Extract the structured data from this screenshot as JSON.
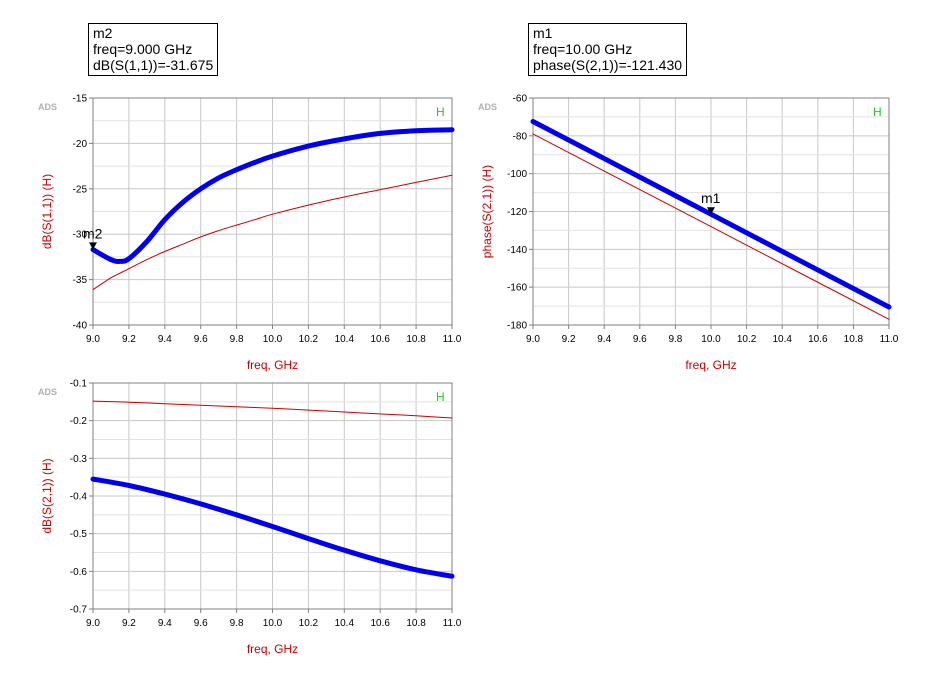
{
  "markers": [
    {
      "name": "m2",
      "line1": "m2",
      "line2": "freq=9.000 GHz",
      "line3": "dB(S(1,1))=-31.675"
    },
    {
      "name": "m1",
      "line1": "m1",
      "line2": "freq=10.00 GHz",
      "line3": "phase(S(2,1))=-121.430"
    }
  ],
  "chart_data": [
    {
      "type": "line",
      "watermark": "ADS",
      "corner_label": "H",
      "xlabel": "freq, GHz",
      "ylabel": "dB(S(1,1))  (H)",
      "xlim": [
        9.0,
        11.0
      ],
      "ylim": [
        -40,
        -15
      ],
      "xticks": [
        "9.0",
        "9.2",
        "9.4",
        "9.6",
        "9.8",
        "10.0",
        "10.2",
        "10.4",
        "10.6",
        "10.8",
        "11.0"
      ],
      "yticks": [
        "-15",
        "-20",
        "-25",
        "-30",
        "-35",
        "-40"
      ],
      "grid": true,
      "x": [
        9.0,
        9.1,
        9.15,
        9.2,
        9.3,
        9.4,
        9.5,
        9.6,
        9.7,
        9.8,
        9.9,
        10.0,
        10.2,
        10.4,
        10.6,
        10.8,
        11.0
      ],
      "series": [
        {
          "color": "#0000ee",
          "width": "thick",
          "values": [
            -31.7,
            -32.8,
            -33.0,
            -32.7,
            -30.8,
            -28.4,
            -26.5,
            -25.0,
            -23.8,
            -22.9,
            -22.1,
            -21.4,
            -20.3,
            -19.5,
            -18.9,
            -18.6,
            -18.5
          ]
        },
        {
          "color": "#cc0000",
          "width": "thin",
          "values": [
            -36.1,
            -34.8,
            -34.3,
            -33.8,
            -32.8,
            -31.9,
            -31.1,
            -30.3,
            -29.6,
            -29.0,
            -28.4,
            -27.8,
            -26.8,
            -25.9,
            -25.1,
            -24.3,
            -23.5
          ]
        }
      ],
      "marker": {
        "label": "m2",
        "x": 9.0,
        "y": -31.675
      }
    },
    {
      "type": "line",
      "watermark": "ADS",
      "corner_label": "H",
      "xlabel": "freq, GHz",
      "ylabel": "phase(S(2,1))  (H)",
      "xlim": [
        9.0,
        11.0
      ],
      "ylim": [
        -180,
        -60
      ],
      "xticks": [
        "9.0",
        "9.2",
        "9.4",
        "9.6",
        "9.8",
        "10.0",
        "10.2",
        "10.4",
        "10.6",
        "10.8",
        "11.0"
      ],
      "yticks": [
        "-60",
        "-80",
        "-100",
        "-120",
        "-140",
        "-160",
        "-180"
      ],
      "grid": true,
      "x": [
        9.0,
        9.5,
        10.0,
        10.5,
        11.0
      ],
      "series": [
        {
          "color": "#0000ee",
          "width": "thick",
          "values": [
            -72.4,
            -96.9,
            -121.43,
            -146.0,
            -170.5
          ]
        },
        {
          "color": "#cc0000",
          "width": "thin",
          "values": [
            -79.0,
            -103.5,
            -128.0,
            -152.5,
            -177.0
          ]
        }
      ],
      "marker": {
        "label": "m1",
        "x": 10.0,
        "y": -121.43
      }
    },
    {
      "type": "line",
      "watermark": "ADS",
      "corner_label": "H",
      "xlabel": "freq, GHz",
      "ylabel": "dB(S(2,1))  (H)",
      "xlim": [
        9.0,
        11.0
      ],
      "ylim": [
        -0.7,
        -0.1
      ],
      "xticks": [
        "9.0",
        "9.2",
        "9.4",
        "9.6",
        "9.8",
        "10.0",
        "10.2",
        "10.4",
        "10.6",
        "10.8",
        "11.0"
      ],
      "yticks": [
        "-0.1",
        "-0.2",
        "-0.3",
        "-0.4",
        "-0.5",
        "-0.6",
        "-0.7"
      ],
      "grid": true,
      "x": [
        9.0,
        9.2,
        9.4,
        9.6,
        9.8,
        10.0,
        10.2,
        10.4,
        10.6,
        10.8,
        11.0
      ],
      "series": [
        {
          "color": "#0000ee",
          "width": "thick",
          "values": [
            -0.355,
            -0.372,
            -0.395,
            -0.421,
            -0.45,
            -0.481,
            -0.513,
            -0.544,
            -0.572,
            -0.596,
            -0.613
          ]
        },
        {
          "color": "#cc0000",
          "width": "thin",
          "values": [
            -0.148,
            -0.151,
            -0.155,
            -0.159,
            -0.163,
            -0.167,
            -0.172,
            -0.177,
            -0.182,
            -0.187,
            -0.193
          ]
        }
      ]
    }
  ]
}
